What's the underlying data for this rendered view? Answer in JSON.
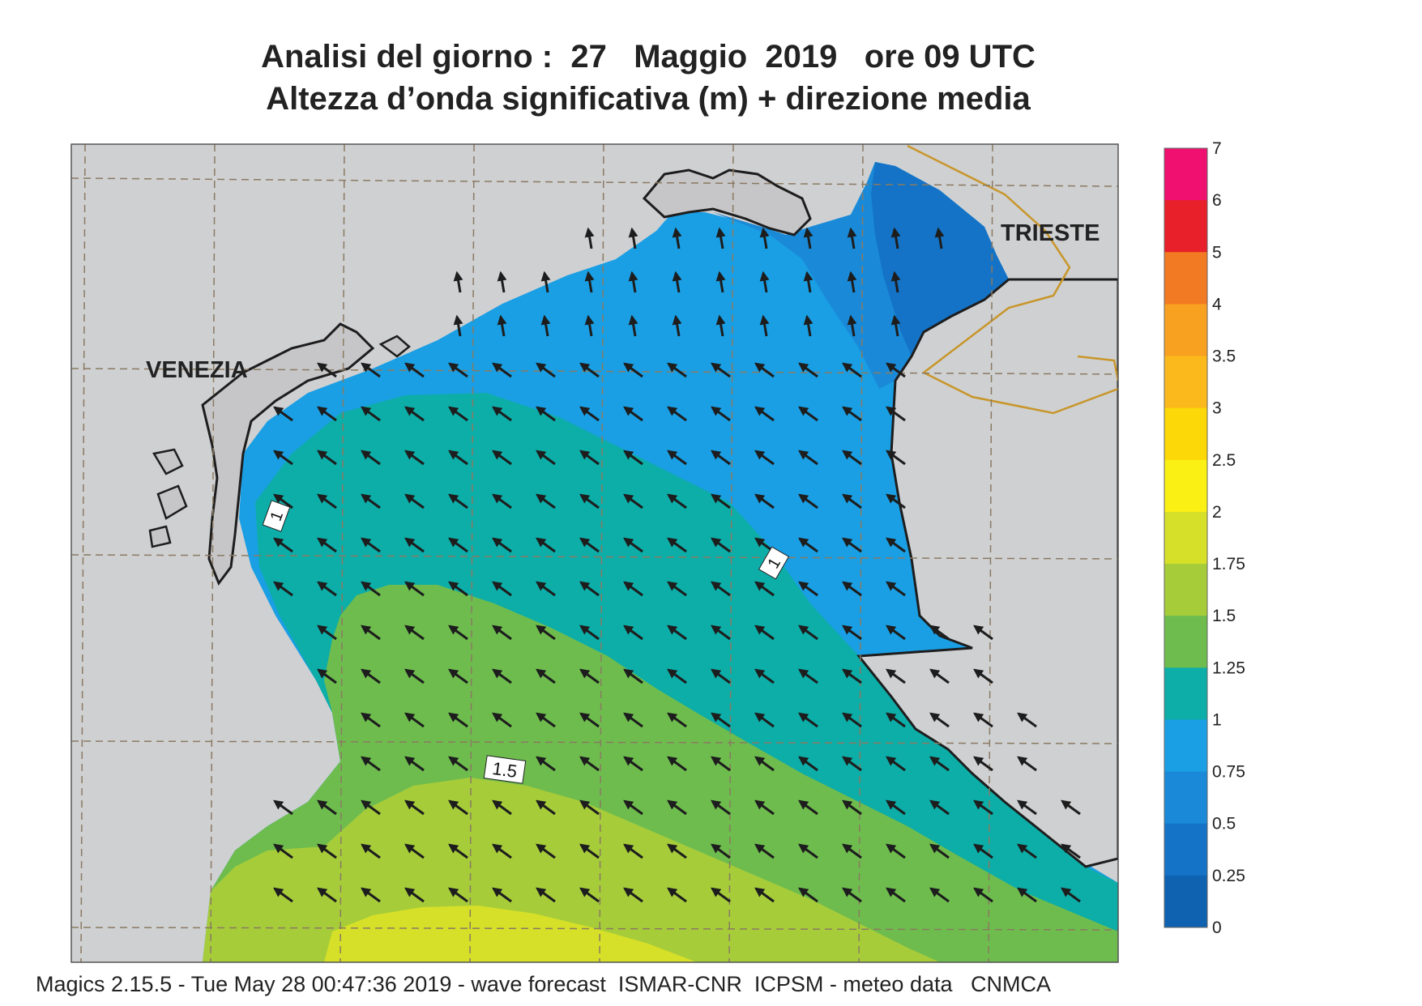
{
  "title": {
    "line1": "Analisi del giorno :  27   Maggio  2019   ore 09 UTC",
    "line2": "Altezza d’onda significativa (m) + direzione media"
  },
  "places": {
    "venezia": "VENEZIA",
    "trieste": "TRIESTE"
  },
  "contour_labels": [
    "1",
    "1",
    "1.5"
  ],
  "colorbar": {
    "labels": [
      "7",
      "6",
      "5",
      "4",
      "3.5",
      "3",
      "2.5",
      "2",
      "1.75",
      "1.5",
      "1.25",
      "1",
      "0.75",
      "0.5",
      "0.25",
      "0"
    ],
    "colors_top_to_bottom": [
      "#ef1070",
      "#e8202a",
      "#f27a22",
      "#f8a020",
      "#fbb91c",
      "#fcd808",
      "#fbf014",
      "#d6e028",
      "#a6cc3a",
      "#6ebc4e",
      "#0dada8",
      "#1a9fe4",
      "#1a8ad8",
      "#1473c6",
      "#0f62b0"
    ]
  },
  "colors": {
    "land": "#cfd0d2",
    "lagoon": "#c6c6c8",
    "band_0_25_0_5": "#1473c6",
    "band_0_5_0_75": "#1a8ad8",
    "band_0_75_1": "#1a9fe4",
    "band_1_1_25": "#0dada8",
    "band_1_25_1_5": "#6ebc4e",
    "band_1_5_1_75": "#a6cc3a",
    "band_1_75_2": "#d6e028",
    "border": "#c8962a"
  },
  "icons": {
    "arrow": "wave-direction-arrow-icon"
  },
  "wave_direction": "arrows pointing north-west over most of the basin, north near the northern coast",
  "footer": "Magics 2.15.5 - Tue May 28 00:47:36 2019 - wave forecast  ISMAR-CNR  ICPSM - meteo data   CNMCA"
}
